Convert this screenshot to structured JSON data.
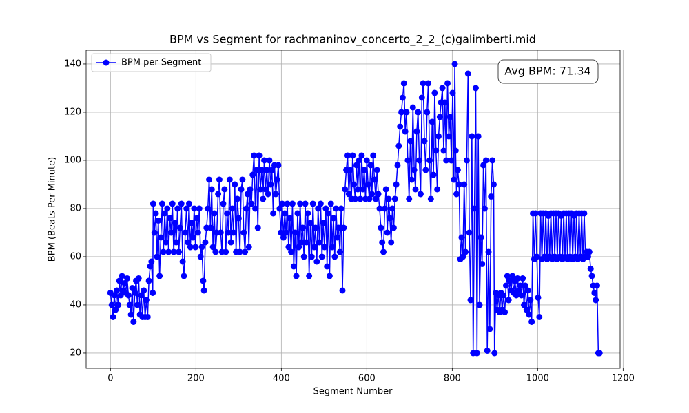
{
  "chart_data": {
    "type": "line",
    "title": "BPM vs Segment for rachmaninov_concerto_2_2_(c)galimberti.mid",
    "xlabel": "Segment Number",
    "ylabel": "BPM (Beats Per Minute)",
    "annotation": "Avg BPM: 71.34",
    "xlim": [
      -57,
      1193
    ],
    "xticks": [
      0,
      200,
      400,
      600,
      800,
      1000,
      1200
    ],
    "ylim": [
      13.7,
      145.7
    ],
    "yticks": [
      20,
      40,
      60,
      80,
      100,
      120,
      140
    ],
    "grid": true,
    "legend": "upper left",
    "marker": "o",
    "x": [
      0,
      3,
      6,
      9,
      12,
      15,
      18,
      21,
      24,
      27,
      30,
      33,
      36,
      39,
      42,
      45,
      48,
      51,
      54,
      57,
      60,
      63,
      66,
      69,
      72,
      75,
      78,
      81,
      84,
      87,
      90,
      93,
      96,
      99,
      100,
      103,
      106,
      109,
      112,
      115,
      118,
      121,
      124,
      127,
      130,
      133,
      136,
      139,
      142,
      145,
      148,
      151,
      154,
      157,
      160,
      163,
      166,
      169,
      172,
      175,
      178,
      181,
      184,
      187,
      190,
      193,
      196,
      199,
      202,
      205,
      208,
      211,
      214,
      217,
      219,
      222,
      225,
      228,
      231,
      234,
      237,
      240,
      243,
      246,
      249,
      252,
      255,
      258,
      261,
      264,
      267,
      270,
      273,
      276,
      279,
      282,
      285,
      288,
      291,
      294,
      297,
      300,
      303,
      306,
      309,
      312,
      315,
      318,
      321,
      324,
      327,
      330,
      333,
      336,
      339,
      342,
      345,
      348,
      351,
      354,
      357,
      360,
      363,
      366,
      369,
      372,
      375,
      378,
      381,
      384,
      387,
      390,
      393,
      396,
      399,
      402,
      405,
      408,
      411,
      414,
      417,
      420,
      423,
      426,
      429,
      432,
      435,
      438,
      441,
      444,
      447,
      450,
      453,
      456,
      459,
      462,
      465,
      468,
      471,
      474,
      477,
      480,
      483,
      486,
      489,
      492,
      495,
      498,
      501,
      504,
      507,
      510,
      513,
      516,
      519,
      522,
      525,
      528,
      531,
      534,
      537,
      540,
      543,
      546,
      549,
      552,
      555,
      558,
      561,
      564,
      567,
      570,
      573,
      576,
      579,
      582,
      585,
      588,
      591,
      594,
      597,
      600,
      603,
      606,
      609,
      612,
      615,
      618,
      621,
      624,
      627,
      630,
      633,
      636,
      639,
      642,
      645,
      648,
      651,
      654,
      657,
      660,
      663,
      666,
      669,
      672,
      675,
      678,
      681,
      684,
      687,
      690,
      693,
      696,
      699,
      702,
      705,
      708,
      711,
      714,
      717,
      720,
      723,
      726,
      729,
      732,
      735,
      738,
      741,
      744,
      747,
      750,
      753,
      756,
      759,
      762,
      765,
      768,
      771,
      774,
      777,
      780,
      783,
      786,
      789,
      792,
      795,
      798,
      801,
      804,
      806,
      808,
      810,
      813,
      816,
      819,
      822,
      825,
      828,
      831,
      834,
      837,
      840,
      843,
      846,
      849,
      852,
      855,
      858,
      861,
      864,
      867,
      870,
      873,
      876,
      879,
      882,
      885,
      888,
      891,
      894,
      897,
      899,
      902,
      905,
      908,
      911,
      914,
      917,
      920,
      923,
      926,
      929,
      932,
      935,
      938,
      941,
      944,
      947,
      950,
      953,
      956,
      959,
      962,
      965,
      968,
      971,
      974,
      977,
      980,
      983,
      986,
      989,
      992,
      995,
      998,
      1001,
      1004,
      1007,
      1010,
      1013,
      1016,
      1019,
      1022,
      1025,
      1028,
      1031,
      1034,
      1037,
      1040,
      1043,
      1046,
      1049,
      1052,
      1055,
      1058,
      1061,
      1064,
      1067,
      1070,
      1073,
      1076,
      1079,
      1082,
      1085,
      1088,
      1091,
      1094,
      1097,
      1100,
      1103,
      1106,
      1109,
      1112,
      1115,
      1118,
      1121,
      1124,
      1127,
      1130,
      1133,
      1136,
      1139,
      1142,
      1145
    ],
    "series": [
      {
        "name": "BPM per Segment",
        "color": "#0000ff",
        "values": [
          45,
          40,
          35,
          44,
          38,
          46,
          40,
          50,
          44,
          52,
          46,
          49,
          45,
          51,
          44,
          40,
          36,
          47,
          33,
          45,
          50,
          40,
          51,
          36,
          44,
          35,
          46,
          35,
          42,
          35,
          50,
          56,
          58,
          45,
          82,
          70,
          78,
          60,
          75,
          52,
          68,
          82,
          62,
          78,
          66,
          80,
          62,
          76,
          70,
          82,
          62,
          74,
          66,
          80,
          62,
          72,
          82,
          58,
          52,
          70,
          80,
          66,
          82,
          64,
          74,
          68,
          80,
          64,
          76,
          70,
          80,
          60,
          64,
          50,
          46,
          66,
          72,
          80,
          92,
          72,
          88,
          64,
          78,
          62,
          70,
          86,
          92,
          70,
          62,
          82,
          88,
          62,
          78,
          70,
          92,
          66,
          80,
          70,
          90,
          62,
          84,
          76,
          62,
          88,
          92,
          70,
          62,
          80,
          86,
          64,
          88,
          82,
          94,
          102,
          80,
          96,
          72,
          102,
          88,
          96,
          84,
          100,
          88,
          96,
          86,
          100,
          90,
          96,
          78,
          98,
          86,
          92,
          98,
          80,
          70,
          82,
          68,
          78,
          70,
          82,
          64,
          76,
          62,
          82,
          56,
          70,
          52,
          78,
          64,
          82,
          66,
          72,
          60,
          82,
          66,
          78,
          52,
          74,
          60,
          82,
          64,
          72,
          58,
          80,
          66,
          82,
          60,
          74,
          64,
          80,
          56,
          78,
          52,
          82,
          64,
          76,
          60,
          80,
          68,
          72,
          62,
          80,
          46,
          72,
          88,
          96,
          102,
          86,
          96,
          84,
          102,
          90,
          84,
          98,
          88,
          100,
          84,
          102,
          88,
          96,
          84,
          100,
          90,
          84,
          98,
          86,
          102,
          92,
          84,
          96,
          86,
          80,
          72,
          66,
          62,
          80,
          88,
          70,
          84,
          76,
          66,
          80,
          72,
          84,
          90,
          98,
          106,
          114,
          120,
          126,
          132,
          112,
          120,
          100,
          84,
          108,
          92,
          122,
          96,
          88,
          112,
          120,
          100,
          86,
          126,
          132,
          108,
          96,
          120,
          132,
          100,
          84,
          116,
          94,
          128,
          104,
          88,
          110,
          118,
          124,
          130,
          104,
          124,
          100,
          132,
          110,
          118,
          100,
          128,
          92,
          140,
          104,
          86,
          96,
          90,
          59,
          68,
          60,
          90,
          62,
          100,
          136,
          70,
          42,
          110,
          20,
          80,
          130,
          20,
          110,
          40,
          68,
          57,
          98,
          80,
          100,
          21,
          62,
          30,
          85,
          100,
          90,
          20,
          45,
          38,
          44,
          37,
          45,
          38,
          44,
          37,
          48,
          52,
          42,
          50,
          46,
          52,
          45,
          50,
          44,
          51,
          46,
          48,
          44,
          51,
          40,
          48,
          38,
          46,
          36,
          42,
          33,
          78,
          59,
          78,
          60,
          43,
          35,
          78,
          59,
          78,
          60,
          78,
          59,
          77,
          60,
          78,
          59,
          78,
          60,
          78,
          59,
          78,
          60,
          77,
          59,
          78,
          60,
          78,
          59,
          78,
          60,
          78,
          59,
          77,
          60,
          78,
          59,
          78,
          60,
          78,
          59,
          78,
          60,
          62,
          60,
          62,
          55,
          52,
          48,
          45,
          42,
          48,
          20,
          20
        ]
      }
    ]
  }
}
